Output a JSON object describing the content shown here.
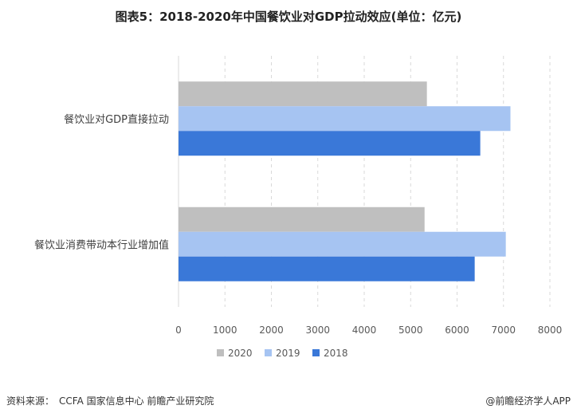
{
  "title": "图表5：2018-2020年中国餐饮业对GDP拉动效应(单位：亿元)",
  "footer": {
    "source_label": "资料来源：",
    "source_text": "CCFA 国家信息中心 前瞻产业研究院",
    "brand": "@前瞻经济学人APP"
  },
  "chart_data": {
    "type": "bar",
    "orientation": "horizontal",
    "categories": [
      "餐饮业对GDP直接拉动",
      "餐饮业消费带动本行业增加值"
    ],
    "series": [
      {
        "name": "2020",
        "color": "#bfbfbf",
        "values": [
          5350,
          5300
        ]
      },
      {
        "name": "2019",
        "color": "#a6c4f2",
        "values": [
          7150,
          7050
        ]
      },
      {
        "name": "2018",
        "color": "#3a78d8",
        "values": [
          6500,
          6380
        ]
      }
    ],
    "xlim": [
      0,
      8000
    ],
    "xticks": [
      0,
      1000,
      2000,
      3000,
      4000,
      5000,
      6000,
      7000,
      8000
    ],
    "grid": true,
    "legend_position": "bottom"
  }
}
